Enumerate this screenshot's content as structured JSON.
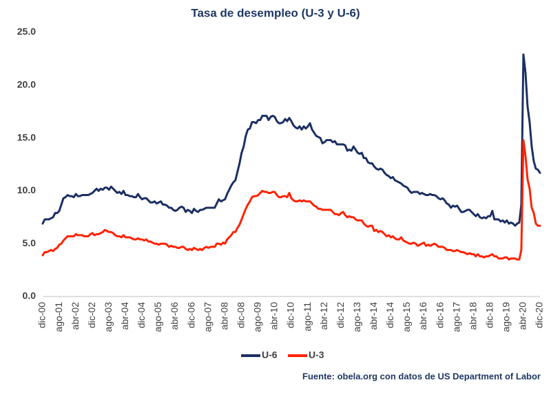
{
  "chart_data": {
    "type": "line",
    "title": "Tasa de desempleo  (U-3 y U-6)",
    "source": "Fuente: obela.org con datos de US Department of Labor",
    "categories": [
      "dic-00",
      null,
      null,
      null,
      null,
      null,
      null,
      null,
      "ago-01",
      null,
      null,
      null,
      null,
      null,
      null,
      null,
      "abr-02",
      null,
      null,
      null,
      null,
      null,
      null,
      null,
      "dic-02",
      null,
      null,
      null,
      null,
      null,
      null,
      null,
      "ago-03",
      null,
      null,
      null,
      null,
      null,
      null,
      null,
      "abr-04",
      null,
      null,
      null,
      null,
      null,
      null,
      null,
      "dic-04",
      null,
      null,
      null,
      null,
      null,
      null,
      null,
      "ago-05",
      null,
      null,
      null,
      null,
      null,
      null,
      null,
      "abr-06",
      null,
      null,
      null,
      null,
      null,
      null,
      null,
      "dic-06",
      null,
      null,
      null,
      null,
      null,
      null,
      null,
      "ago-07",
      null,
      null,
      null,
      null,
      null,
      null,
      null,
      "abr-08",
      null,
      null,
      null,
      null,
      null,
      null,
      null,
      "dic-08",
      null,
      null,
      null,
      null,
      null,
      null,
      null,
      "ago-09",
      null,
      null,
      null,
      null,
      null,
      null,
      null,
      "abr-10",
      null,
      null,
      null,
      null,
      null,
      null,
      null,
      "dic-10",
      null,
      null,
      null,
      null,
      null,
      null,
      null,
      "ago-11",
      null,
      null,
      null,
      null,
      null,
      null,
      null,
      "abr-12",
      null,
      null,
      null,
      null,
      null,
      null,
      null,
      "dic-12",
      null,
      null,
      null,
      null,
      null,
      null,
      null,
      "ago-13",
      null,
      null,
      null,
      null,
      null,
      null,
      null,
      "abr-14",
      null,
      null,
      null,
      null,
      null,
      null,
      null,
      "dic-14",
      null,
      null,
      null,
      null,
      null,
      null,
      null,
      "ago-15",
      null,
      null,
      null,
      null,
      null,
      null,
      null,
      "abr-16",
      null,
      null,
      null,
      null,
      null,
      null,
      null,
      "dic-16",
      null,
      null,
      null,
      null,
      null,
      null,
      null,
      "ago-17",
      null,
      null,
      null,
      null,
      null,
      null,
      null,
      "abr-18",
      null,
      null,
      null,
      null,
      null,
      null,
      null,
      "dic-18",
      null,
      null,
      null,
      null,
      null,
      null,
      null,
      "ago-19",
      null,
      null,
      null,
      null,
      null,
      null,
      null,
      "abr-20",
      null,
      null,
      null,
      null,
      null,
      null,
      null,
      "dic-20"
    ],
    "series": [
      {
        "name": "U-6",
        "color": "#1b2f63",
        "values": [
          6.9,
          7.3,
          7.3,
          7.3,
          7.4,
          7.5,
          7.9,
          7.9,
          8.1,
          8.7,
          9.3,
          9.4,
          9.6,
          9.5,
          9.5,
          9.4,
          9.7,
          9.5,
          9.5,
          9.6,
          9.6,
          9.6,
          9.6,
          9.7,
          9.8,
          10.0,
          10.2,
          10.0,
          10.2,
          10.1,
          10.3,
          10.3,
          10.1,
          10.4,
          10.2,
          10.0,
          9.8,
          9.9,
          9.7,
          10.0,
          9.6,
          9.6,
          9.5,
          9.5,
          9.4,
          9.4,
          9.7,
          9.4,
          9.2,
          9.3,
          9.3,
          9.1,
          8.9,
          8.9,
          9.0,
          8.8,
          8.9,
          9.0,
          8.7,
          8.7,
          8.6,
          8.4,
          8.4,
          8.2,
          8.1,
          8.2,
          8.4,
          8.5,
          8.4,
          8.0,
          8.2,
          8.1,
          7.9,
          8.3,
          8.1,
          8.0,
          8.2,
          8.2,
          8.3,
          8.4,
          8.4,
          8.4,
          8.4,
          8.4,
          8.8,
          9.2,
          9.0,
          9.1,
          9.2,
          9.7,
          10.1,
          10.5,
          10.8,
          11.0,
          11.8,
          12.6,
          13.6,
          14.2,
          15.2,
          15.8,
          15.9,
          16.5,
          16.5,
          16.4,
          16.7,
          16.7,
          17.1,
          17.1,
          17.1,
          16.7,
          17.0,
          17.1,
          17.0,
          16.6,
          16.4,
          16.4,
          16.5,
          16.8,
          16.6,
          16.9,
          16.6,
          16.2,
          16.0,
          15.9,
          16.1,
          15.8,
          16.1,
          15.9,
          16.1,
          16.4,
          15.8,
          15.5,
          15.2,
          15.1,
          15.0,
          14.5,
          14.6,
          14.8,
          14.8,
          14.8,
          14.6,
          14.7,
          14.4,
          14.4,
          14.4,
          14.4,
          14.3,
          13.8,
          13.9,
          13.8,
          14.2,
          13.9,
          13.6,
          13.5,
          13.6,
          13.1,
          13.1,
          12.7,
          12.6,
          12.6,
          12.3,
          12.1,
          12.0,
          12.1,
          12.0,
          11.7,
          11.5,
          11.4,
          11.2,
          11.3,
          11.0,
          10.9,
          10.8,
          10.7,
          10.5,
          10.4,
          10.3,
          10.0,
          9.8,
          9.9,
          9.9,
          9.9,
          9.7,
          9.8,
          9.7,
          9.6,
          9.6,
          9.7,
          9.6,
          9.6,
          9.5,
          9.3,
          9.2,
          9.3,
          9.1,
          8.8,
          8.7,
          8.4,
          8.6,
          8.5,
          8.6,
          8.3,
          8.0,
          8.0,
          8.1,
          8.2,
          8.2,
          8.0,
          7.8,
          7.6,
          7.8,
          7.5,
          7.4,
          7.5,
          7.4,
          7.6,
          7.6,
          8.1,
          7.3,
          7.3,
          7.3,
          7.1,
          7.2,
          7.0,
          7.2,
          6.9,
          7.0,
          6.9,
          6.7,
          6.9,
          7.0,
          8.7,
          22.9,
          21.2,
          18.0,
          16.5,
          14.2,
          12.8,
          12.1,
          12.0,
          11.7
        ]
      },
      {
        "name": "U-3",
        "color": "#ff2200",
        "values": [
          3.9,
          4.2,
          4.2,
          4.3,
          4.4,
          4.3,
          4.5,
          4.6,
          4.9,
          5.0,
          5.3,
          5.5,
          5.7,
          5.7,
          5.7,
          5.7,
          5.9,
          5.8,
          5.8,
          5.8,
          5.7,
          5.7,
          5.7,
          5.9,
          6.0,
          5.8,
          5.9,
          5.9,
          6.0,
          6.1,
          6.3,
          6.2,
          6.1,
          6.1,
          6.0,
          5.8,
          5.7,
          5.7,
          5.6,
          5.8,
          5.6,
          5.6,
          5.6,
          5.5,
          5.4,
          5.4,
          5.5,
          5.4,
          5.4,
          5.3,
          5.4,
          5.2,
          5.2,
          5.1,
          5.0,
          5.0,
          4.9,
          5.0,
          5.0,
          5.0,
          4.9,
          4.7,
          4.8,
          4.7,
          4.7,
          4.6,
          4.6,
          4.7,
          4.7,
          4.5,
          4.4,
          4.5,
          4.4,
          4.6,
          4.5,
          4.4,
          4.5,
          4.4,
          4.6,
          4.7,
          4.6,
          4.7,
          4.7,
          4.7,
          5.0,
          5.0,
          4.9,
          5.1,
          5.0,
          5.4,
          5.6,
          5.8,
          6.1,
          6.1,
          6.5,
          6.8,
          7.3,
          7.8,
          8.3,
          8.7,
          9.0,
          9.4,
          9.5,
          9.5,
          9.6,
          9.8,
          10.0,
          9.9,
          9.9,
          9.8,
          9.8,
          9.9,
          9.9,
          9.6,
          9.4,
          9.4,
          9.5,
          9.5,
          9.4,
          9.8,
          9.3,
          9.1,
          9.0,
          9.0,
          9.1,
          9.0,
          9.1,
          9.0,
          9.0,
          9.0,
          8.8,
          8.6,
          8.5,
          8.3,
          8.3,
          8.2,
          8.2,
          8.2,
          8.2,
          8.2,
          8.0,
          7.8,
          7.8,
          7.7,
          7.9,
          8.0,
          7.7,
          7.5,
          7.6,
          7.5,
          7.5,
          7.3,
          7.2,
          7.2,
          7.2,
          6.9,
          6.7,
          6.6,
          6.7,
          6.7,
          6.2,
          6.3,
          6.1,
          6.2,
          6.1,
          5.9,
          5.7,
          5.8,
          5.6,
          5.7,
          5.5,
          5.4,
          5.4,
          5.6,
          5.3,
          5.2,
          5.1,
          5.0,
          5.0,
          5.1,
          5.0,
          4.8,
          4.9,
          5.0,
          5.1,
          4.8,
          4.9,
          4.8,
          4.9,
          5.0,
          4.9,
          4.7,
          4.7,
          4.7,
          4.6,
          4.4,
          4.4,
          4.4,
          4.3,
          4.3,
          4.4,
          4.3,
          4.2,
          4.2,
          4.1,
          4.0,
          4.1,
          4.0,
          4.0,
          3.8,
          4.0,
          3.8,
          3.8,
          3.7,
          3.8,
          3.8,
          3.9,
          4.0,
          3.8,
          3.8,
          3.6,
          3.6,
          3.6,
          3.7,
          3.7,
          3.5,
          3.6,
          3.6,
          3.6,
          3.5,
          3.5,
          4.4,
          14.8,
          13.3,
          11.1,
          10.2,
          8.4,
          7.9,
          6.9,
          6.7,
          6.7
        ]
      }
    ],
    "ylim": [
      0,
      25
    ],
    "yticks": [
      {
        "value": 0,
        "label": "0.0"
      },
      {
        "value": 5,
        "label": "5.0"
      },
      {
        "value": 10,
        "label": "10.0"
      },
      {
        "value": 15,
        "label": "15.0"
      },
      {
        "value": 20,
        "label": "20.0"
      },
      {
        "value": 25,
        "label": "25.0"
      }
    ],
    "grid": false,
    "legend": "bottom"
  }
}
